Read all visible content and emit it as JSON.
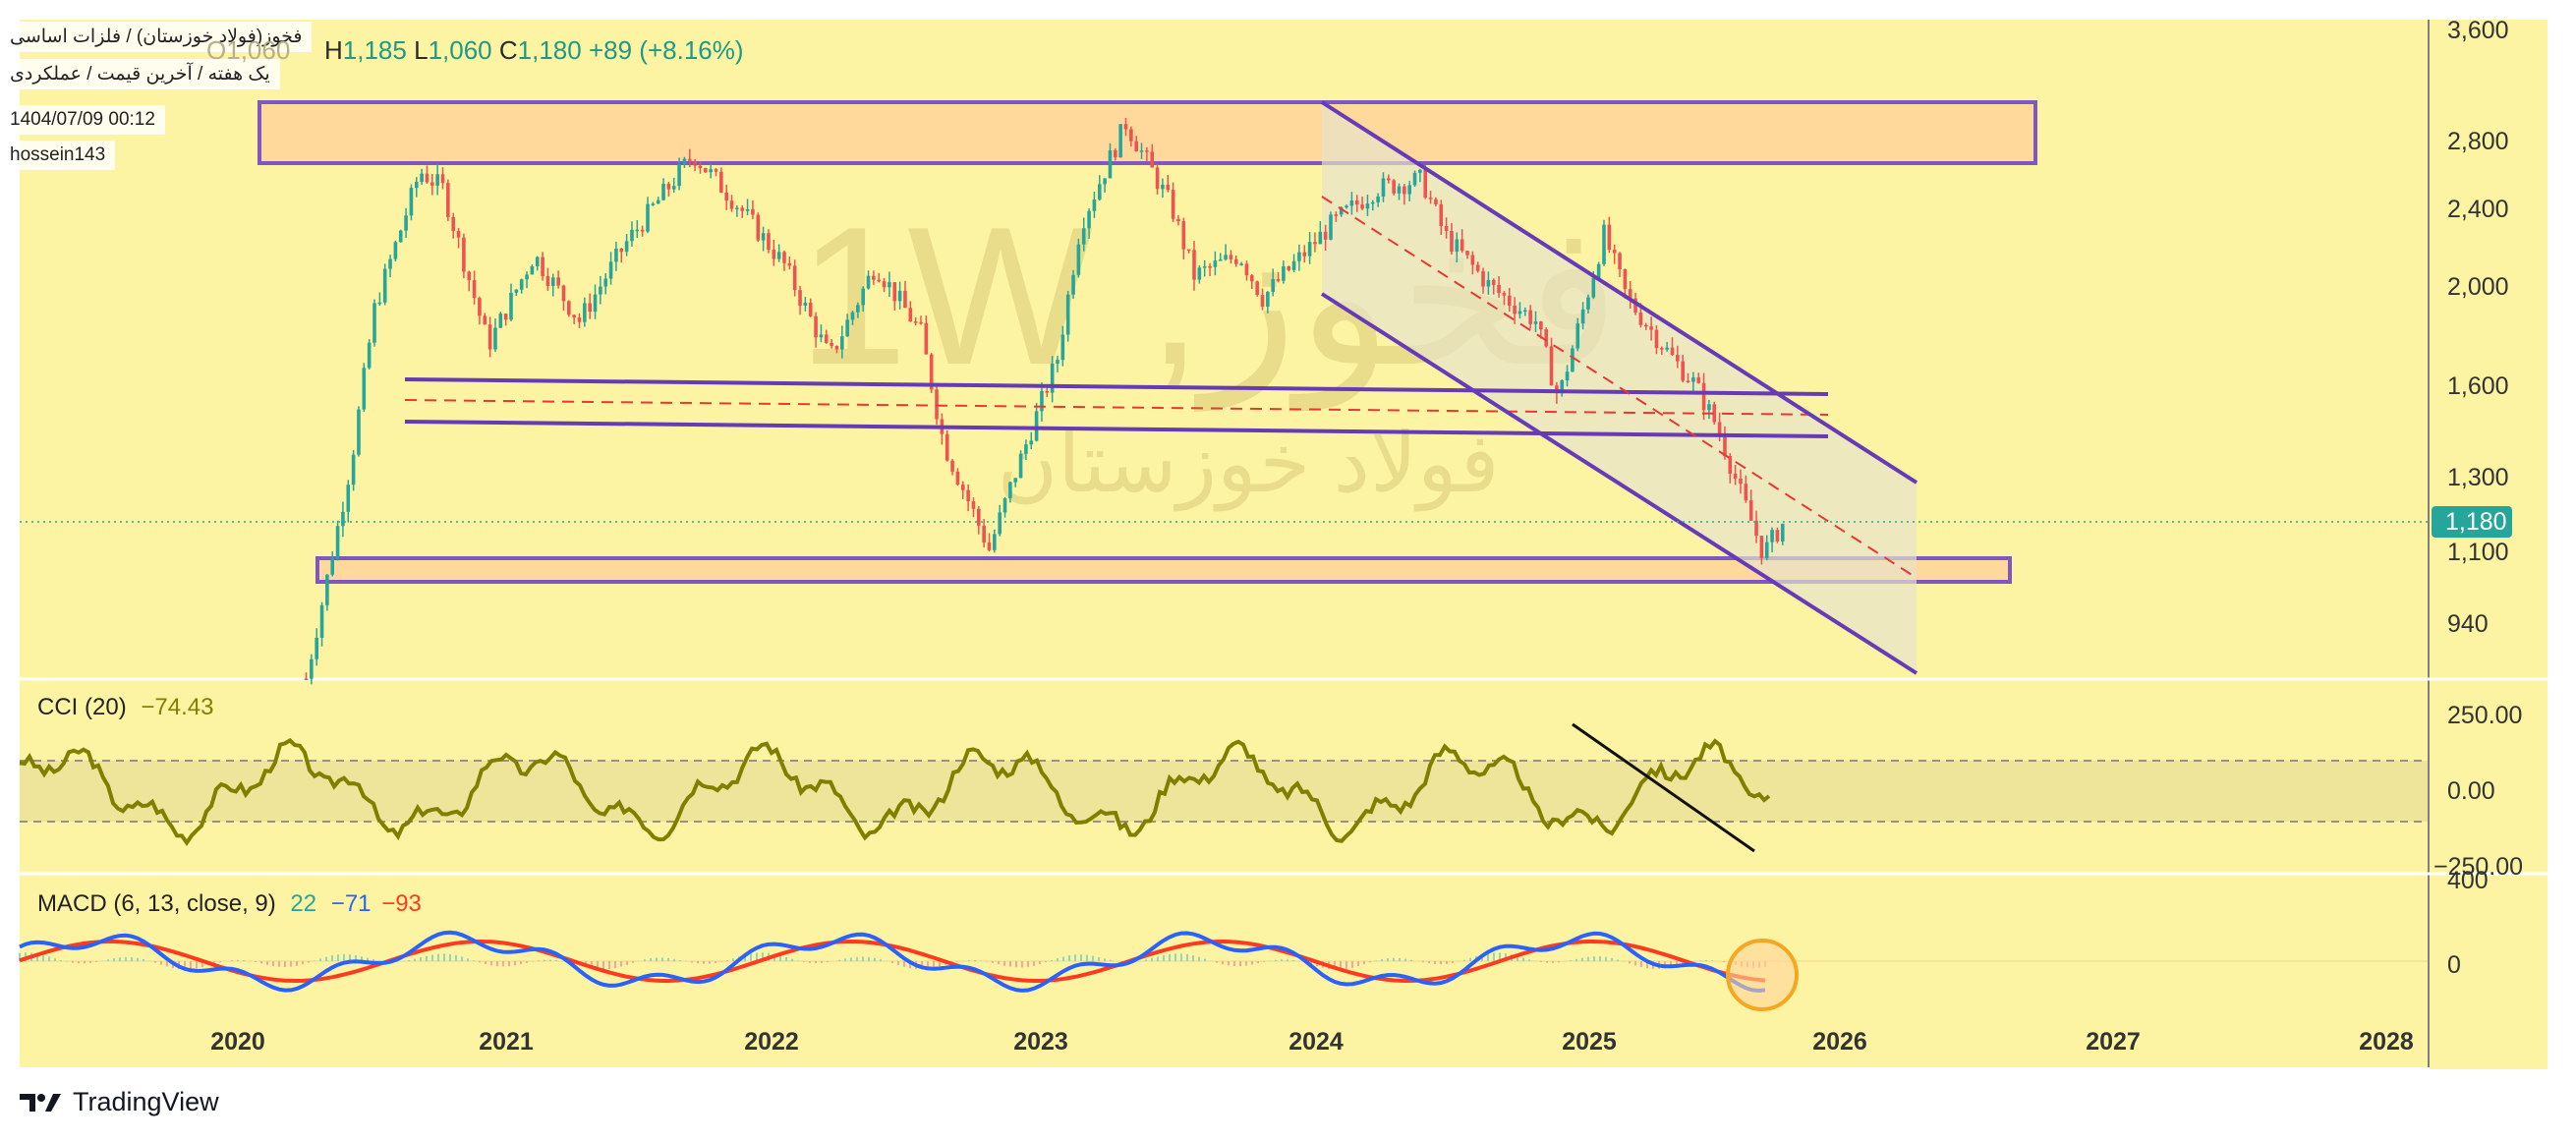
{
  "info": {
    "title": "فخوز(فولاد خوزستان) / فلزات اساسی",
    "subtitle": "یک هفته / آخرین قیمت / عملکردی",
    "datetime": "1404/07/09 00:12",
    "author": "hossein143"
  },
  "ohlc": {
    "open_label": "O",
    "open_value": "1,060",
    "high_label": "H",
    "high_value": "1,185",
    "low_label": "L",
    "low_value": "1,060",
    "close_label": "C",
    "close_value": "1,180",
    "change": "+89 (+8.16%)"
  },
  "watermark": {
    "symbol": "فخوز, 1W",
    "name": "فولاد خوزستان"
  },
  "price_axis": {
    "ticks": [
      "3,600",
      "2,800",
      "2,400",
      "2,000",
      "1,600",
      "1,300",
      "1,100",
      "940"
    ],
    "current_price": "1,180"
  },
  "cci": {
    "label": "CCI (20)",
    "value": "−74.43",
    "ticks": [
      "250.00",
      "0.00",
      "−250.00"
    ]
  },
  "macd": {
    "label": "MACD (6, 13, close, 9)",
    "hist_value": "22",
    "macd_value": "−71",
    "signal_value": "−93",
    "ticks": [
      "400",
      "0"
    ]
  },
  "time_axis": {
    "labels": [
      "2020",
      "2021",
      "2022",
      "2023",
      "2024",
      "2025",
      "2026",
      "2027",
      "2028"
    ]
  },
  "brand": "TradingView",
  "colors": {
    "background": "#fdf4a3",
    "up_candle": "#26a69a",
    "down_candle": "#ef5350",
    "drawing": "#673ab7",
    "zone_fill": "#ffd39a",
    "cci_line": "#808000",
    "macd_line": "#2962ff",
    "signal_line": "#ff3b1f"
  },
  "chart_data": {
    "type": "candlestick",
    "timeframe": "1W",
    "price_scale": "log",
    "price_range": [
      820,
      3600
    ],
    "x_range": [
      "2019-04",
      "2028-04"
    ],
    "price_path": [
      [
        "2020-04",
        820
      ],
      [
        "2020-05",
        1050
      ],
      [
        "2020-06",
        1350
      ],
      [
        "2020-07",
        1900
      ],
      [
        "2020-09",
        2600
      ],
      [
        "2020-10",
        2500
      ],
      [
        "2020-12",
        1750
      ],
      [
        "2021-02",
        2150
      ],
      [
        "2021-04",
        1850
      ],
      [
        "2021-06",
        2200
      ],
      [
        "2021-09",
        2700
      ],
      [
        "2021-11",
        2400
      ],
      [
        "2022-01",
        2100
      ],
      [
        "2022-03",
        1700
      ],
      [
        "2022-05",
        2100
      ],
      [
        "2022-07",
        1800
      ],
      [
        "2022-08",
        1400
      ],
      [
        "2022-10",
        1100
      ],
      [
        "2022-11",
        1280
      ],
      [
        "2023-01",
        1700
      ],
      [
        "2023-02",
        2300
      ],
      [
        "2023-04",
        2900
      ],
      [
        "2023-06",
        2400
      ],
      [
        "2023-07",
        2050
      ],
      [
        "2023-09",
        2150
      ],
      [
        "2023-10",
        1950
      ],
      [
        "2024-01",
        2300
      ],
      [
        "2024-03",
        2500
      ],
      [
        "2024-05",
        2550
      ],
      [
        "2024-06",
        2250
      ],
      [
        "2024-08",
        2000
      ],
      [
        "2024-10",
        1850
      ],
      [
        "2024-11",
        1550
      ],
      [
        "2025-01",
        2250
      ],
      [
        "2025-02",
        1950
      ],
      [
        "2025-04",
        1700
      ],
      [
        "2025-05",
        1600
      ],
      [
        "2025-06",
        1450
      ],
      [
        "2025-07",
        1250
      ],
      [
        "2025-08",
        1090
      ],
      [
        "2025-09",
        1180
      ]
    ],
    "last_close": 1180,
    "indicators": {
      "cci": {
        "period": 20,
        "last": -74.43,
        "range": [
          -300,
          400
        ],
        "bands": [
          100,
          -100
        ]
      },
      "macd": {
        "fast": 6,
        "slow": 13,
        "signal": 9,
        "histogram": 22,
        "macd": -71,
        "signal_value": -93
      }
    }
  }
}
